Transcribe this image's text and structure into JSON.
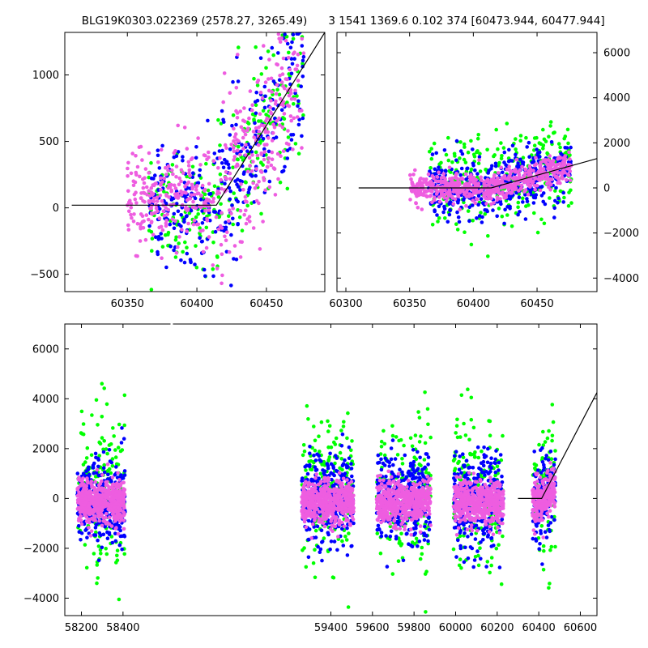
{
  "titles": {
    "left": "BLG19K0303.022369 (2578.27, 3265.49)",
    "right": "3 1541 1369.6 0.102 374 [60473.944, 60477.944]"
  },
  "colors": {
    "series_a": "#00ff00",
    "series_b": "#0000ff",
    "series_c": "#ee5de0",
    "model_line": "#000000",
    "axes": "#000000",
    "background": "#ffffff"
  },
  "chart_data": [
    {
      "type": "scatter",
      "panel": "top-left zoom",
      "xlim": [
        60305,
        60492
      ],
      "ylim": [
        -630,
        1320
      ],
      "xticks": [
        60350,
        60400,
        60450
      ],
      "yticks": [
        -500,
        0,
        500,
        1000
      ],
      "ytick_side": "left",
      "grid": false,
      "series": [
        {
          "color": "#00ff00",
          "x_range": [
            60365,
            60477
          ],
          "y_trend": "rising from ~0 to ~1100 after 60415"
        },
        {
          "color": "#0000ff",
          "x_range": [
            60365,
            60477
          ],
          "y_trend": "rising from ~0 to ~1100 after 60415"
        },
        {
          "color": "#ee5de0",
          "x_range": [
            60350,
            60477
          ],
          "y_trend": "rising from ~0 to ~1100 after 60415"
        }
      ],
      "model_line": [
        [
          60310,
          20
        ],
        [
          60414,
          20
        ],
        [
          60492,
          1320
        ]
      ]
    },
    {
      "type": "scatter",
      "panel": "top-right zoom",
      "xlim": [
        60293,
        60497
      ],
      "ylim": [
        -4600,
        6900
      ],
      "xticks": [
        60300,
        60350,
        60400,
        60450
      ],
      "yticks": [
        -4000,
        -2000,
        0,
        2000,
        4000,
        6000
      ],
      "ytick_side": "right",
      "grid": false,
      "series": [
        {
          "color": "#00ff00",
          "x_range": [
            60365,
            60477
          ]
        },
        {
          "color": "#0000ff",
          "x_range": [
            60365,
            60477
          ]
        },
        {
          "color": "#ee5de0",
          "x_range": [
            60350,
            60477
          ]
        }
      ],
      "model_line": [
        [
          60310,
          0
        ],
        [
          60414,
          0
        ],
        [
          60497,
          1300
        ]
      ]
    },
    {
      "type": "scatter",
      "panel": "bottom full light curve",
      "xlim": [
        58120,
        60680
      ],
      "ylim": [
        -4700,
        7000
      ],
      "xticks": [
        58200,
        58400,
        59400,
        59600,
        59800,
        60000,
        60200,
        60400,
        60600
      ],
      "yticks": [
        -4000,
        -2000,
        0,
        2000,
        4000,
        6000
      ],
      "ytick_side": "left",
      "grid": false,
      "seasons": [
        [
          58180,
          58410
        ],
        [
          59260,
          59510
        ],
        [
          59620,
          59880
        ],
        [
          59990,
          60230
        ],
        [
          60370,
          60480
        ]
      ],
      "series": [
        {
          "color": "#00ff00"
        },
        {
          "color": "#0000ff"
        },
        {
          "color": "#ee5de0"
        }
      ],
      "model_line": [
        [
          60300,
          0
        ],
        [
          60414,
          0
        ],
        [
          60680,
          4250
        ]
      ]
    }
  ]
}
